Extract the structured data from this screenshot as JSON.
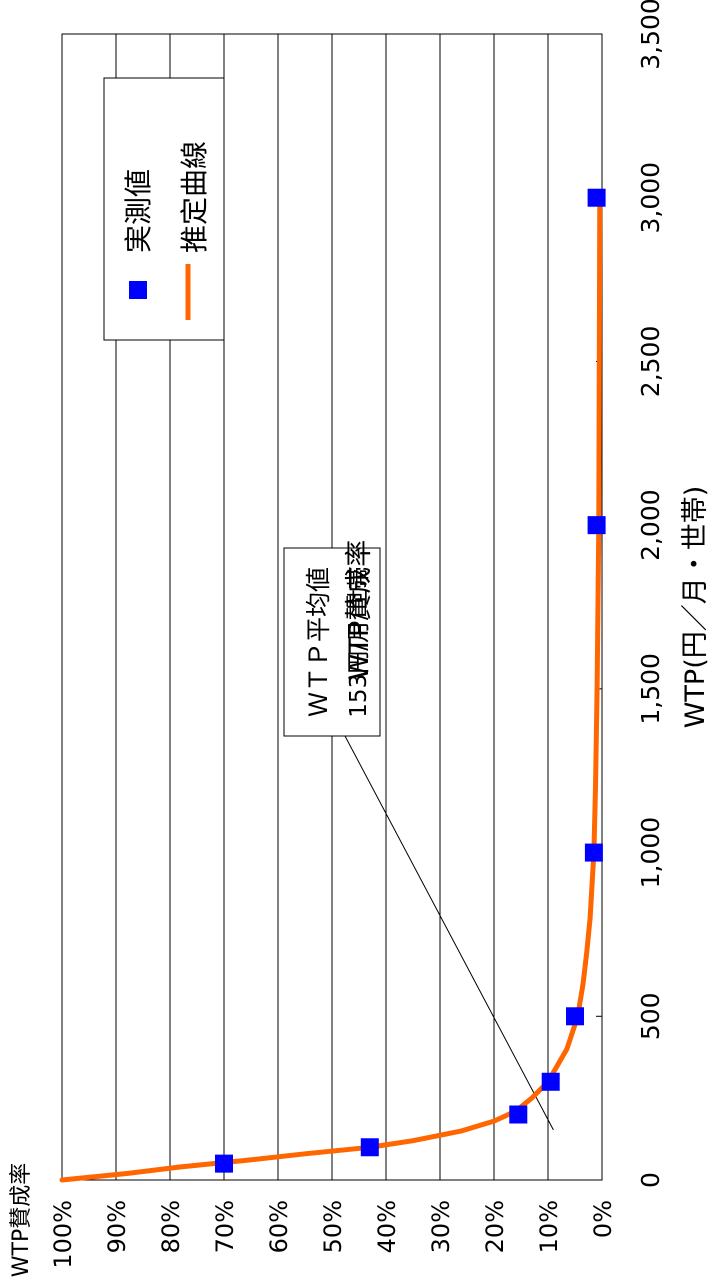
{
  "chart_data": {
    "type": "line",
    "title": "WTP賛成率",
    "xlabel": "WTP(円／月・世帯)",
    "ylabel": "WTP賛成率",
    "xlim": [
      0,
      3500
    ],
    "ylim": [
      0,
      1.0
    ],
    "x_ticks": [
      0,
      500,
      1000,
      1500,
      2000,
      2500,
      3000,
      3500
    ],
    "x_tick_labels": [
      "0",
      "500",
      "1,000",
      "1,500",
      "2,000",
      "2,500",
      "3,000",
      "3,500"
    ],
    "y_ticks": [
      0,
      0.1,
      0.2,
      0.3,
      0.4,
      0.5,
      0.6,
      0.7,
      0.8,
      0.9,
      1.0
    ],
    "y_tick_labels": [
      "0%",
      "10%",
      "20%",
      "30%",
      "40%",
      "50%",
      "60%",
      "70%",
      "80%",
      "90%",
      "100%"
    ],
    "grid": "horizontal",
    "legend_position": "top-right",
    "series": [
      {
        "name": "実測値",
        "kind": "scatter",
        "color": "#0000FF",
        "x": [
          50,
          100,
          200,
          300,
          500,
          1000,
          2000,
          3000
        ],
        "y": [
          0.7,
          0.43,
          0.155,
          0.095,
          0.05,
          0.015,
          0.01,
          0.01
        ]
      },
      {
        "name": "推定曲線",
        "kind": "line",
        "color": "#FF6600",
        "x": [
          0,
          20,
          40,
          60,
          80,
          100,
          120,
          150,
          180,
          210,
          250,
          300,
          400,
          500,
          600,
          700,
          800,
          1000,
          1200,
          1500,
          2000,
          2500,
          3000
        ],
        "y": [
          1.0,
          0.88,
          0.78,
          0.66,
          0.55,
          0.43,
          0.35,
          0.26,
          0.2,
          0.16,
          0.13,
          0.1,
          0.065,
          0.045,
          0.035,
          0.028,
          0.022,
          0.015,
          0.012,
          0.009,
          0.006,
          0.005,
          0.004
        ]
      }
    ],
    "annotation": {
      "lines": [
        "ＷＴＰ平均値",
        "153円/月/世帯"
      ],
      "pointer": {
        "x": 153,
        "y": 0.09
      }
    }
  }
}
